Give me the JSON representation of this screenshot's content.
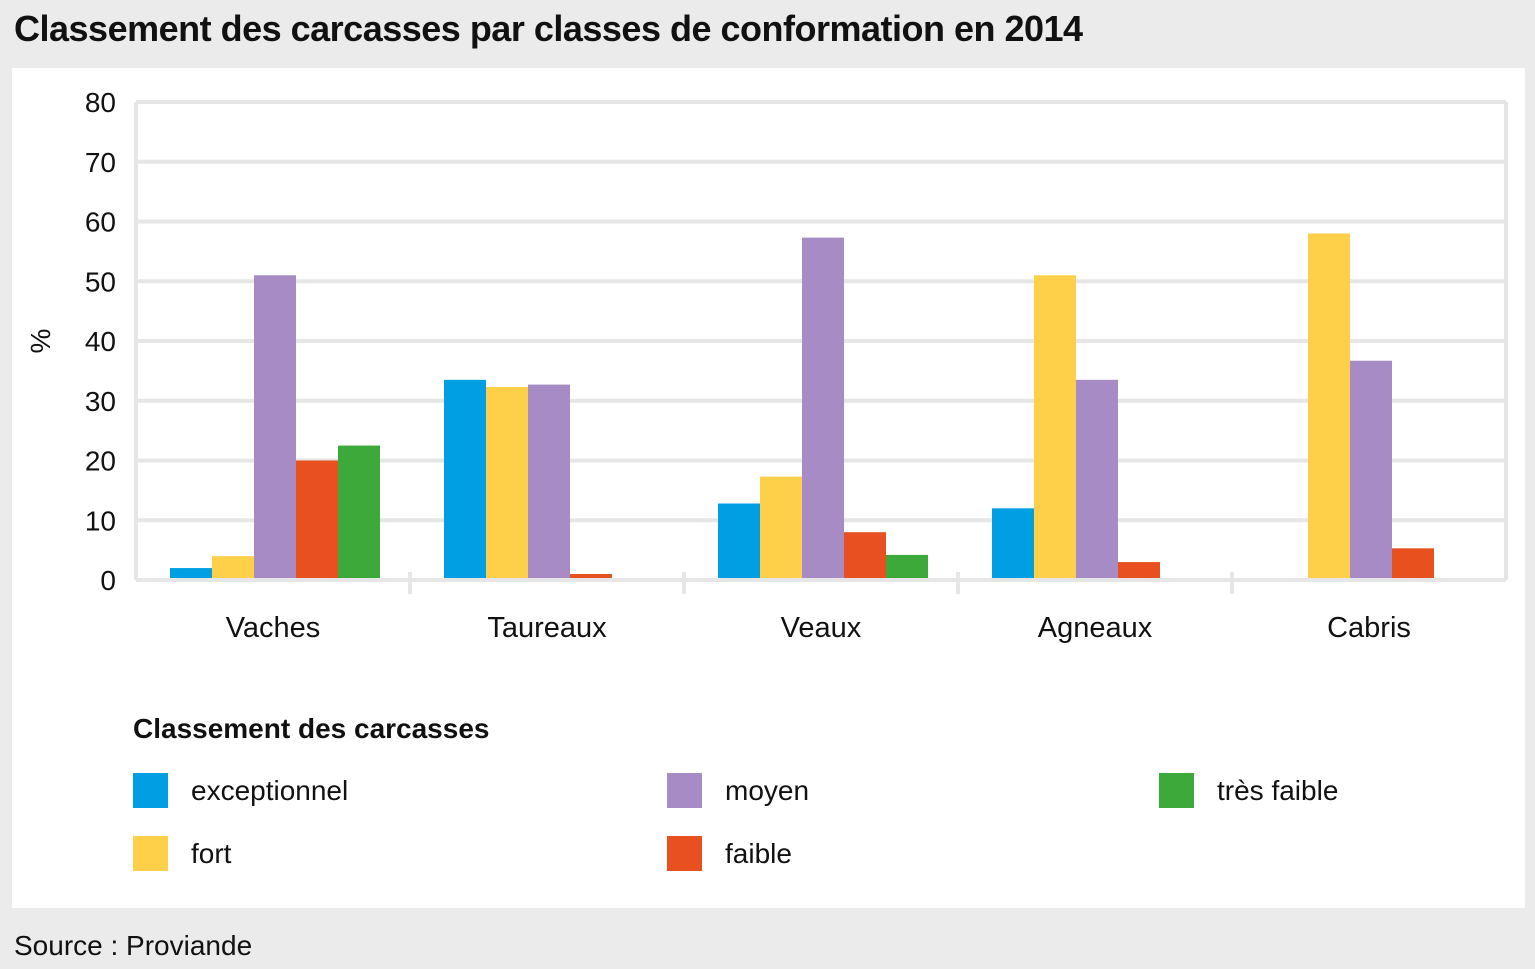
{
  "title": "Classement des carcasses par classes de conformation en 2014",
  "source": "Source : Proviande",
  "legend": {
    "title": "Classement des carcasses"
  },
  "chart_data": {
    "type": "bar",
    "title": "Classement des carcasses par classes de conformation en 2014",
    "ylabel": "%",
    "xlabel": "",
    "ylim": [
      0,
      80
    ],
    "yticks": [
      0,
      10,
      20,
      30,
      40,
      50,
      60,
      70,
      80
    ],
    "grid": true,
    "legend_position": "bottom",
    "categories": [
      "Vaches",
      "Taureaux",
      "Veaux",
      "Agneaux",
      "Cabris"
    ],
    "series": [
      {
        "name": "exceptionnel",
        "color": "#009fe3",
        "values": [
          2.0,
          33.5,
          12.8,
          12.0,
          0
        ]
      },
      {
        "name": "fort",
        "color": "#fecf48",
        "values": [
          4.0,
          32.3,
          17.3,
          51.0,
          58.0
        ]
      },
      {
        "name": "moyen",
        "color": "#a68bc4",
        "values": [
          51.0,
          32.7,
          57.3,
          33.5,
          36.7
        ]
      },
      {
        "name": "faible",
        "color": "#e8501f",
        "values": [
          20.0,
          1.0,
          8.0,
          3.0,
          5.3
        ]
      },
      {
        "name": "très faible",
        "color": "#3ca93a",
        "values": [
          22.5,
          0.2,
          4.2,
          0.2,
          0
        ]
      }
    ]
  }
}
